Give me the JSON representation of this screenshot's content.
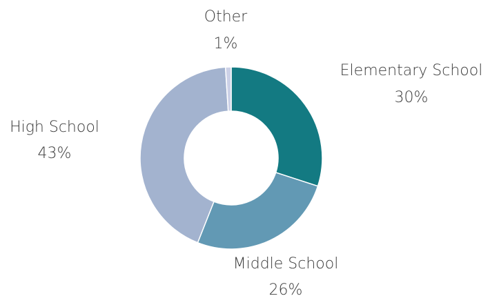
{
  "chart_data": {
    "type": "pie",
    "variant": "donut",
    "title": "",
    "slices": [
      {
        "name": "Elementary School",
        "value": 30,
        "label": "30%",
        "color": "#137a82"
      },
      {
        "name": "Middle School",
        "value": 26,
        "label": "26%",
        "color": "#6299b4"
      },
      {
        "name": "High School",
        "value": 43,
        "label": "43%",
        "color": "#a3b3cf"
      },
      {
        "name": "Other",
        "value": 1,
        "label": "1%",
        "color": "#ccd1e7"
      }
    ],
    "legend": "none",
    "labels_position": "outside"
  }
}
